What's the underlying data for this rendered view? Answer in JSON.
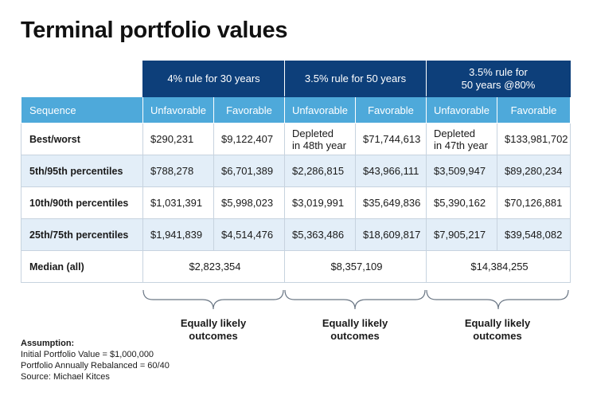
{
  "title": "Terminal portfolio values",
  "groups": [
    {
      "label": "4% rule for 30 years"
    },
    {
      "label": "3.5% rule for 50 years"
    },
    {
      "label_line1": "3.5% rule for",
      "label_line2": "50 years @80%"
    }
  ],
  "subheader": {
    "sequence": "Sequence",
    "unfavorable": "Unfavorable",
    "favorable": "Favorable"
  },
  "rows": [
    {
      "label": "Best/worst",
      "g1_unfav": "$290,231",
      "g1_fav": "$9,122,407",
      "g2_unfav_line1": "Depleted",
      "g2_unfav_line2": "in 48th year",
      "g2_fav": "$71,744,613",
      "g3_unfav_line1": "Depleted",
      "g3_unfav_line2": "in 47th year",
      "g3_fav": "$133,981,702"
    },
    {
      "label": "5th/95th percentiles",
      "g1_unfav": "$788,278",
      "g1_fav": "$6,701,389",
      "g2_unfav": "$2,286,815",
      "g2_fav": "$43,966,111",
      "g3_unfav": "$3,509,947",
      "g3_fav": "$89,280,234"
    },
    {
      "label": "10th/90th percentiles",
      "g1_unfav": "$1,031,391",
      "g1_fav": "$5,998,023",
      "g2_unfav": "$3,019,991",
      "g2_fav": "$35,649,836",
      "g3_unfav": "$5,390,162",
      "g3_fav": "$70,126,881"
    },
    {
      "label": "25th/75th percentiles",
      "g1_unfav": "$1,941,839",
      "g1_fav": "$4,514,476",
      "g2_unfav": "$5,363,486",
      "g2_fav": "$18,609,817",
      "g3_unfav": "$7,905,217",
      "g3_fav": "$39,548,082"
    },
    {
      "label": "Median (all)",
      "g1": "$2,823,354",
      "g2": "$8,357,109",
      "g3": "$14,384,255"
    }
  ],
  "outcome": {
    "line1": "Equally likely",
    "line2": "outcomes"
  },
  "notes": {
    "heading": "Assumption:",
    "line1": "Initial Portfolio Value = $1,000,000",
    "line2": "Portfolio Annually Rebalanced = 60/40",
    "source": "Source: Michael Kitces"
  },
  "colors": {
    "group_header": "#0d3f7a",
    "sub_header": "#4ea9da",
    "row_shade": "#e3eef8"
  }
}
